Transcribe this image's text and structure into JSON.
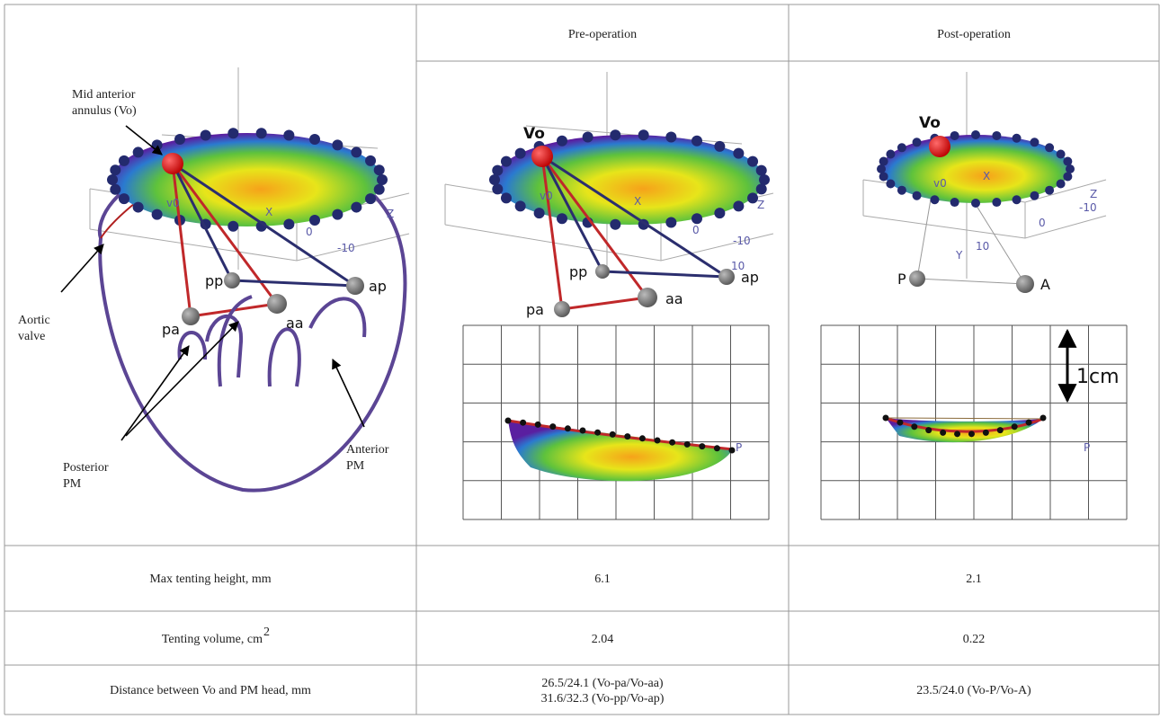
{
  "table": {
    "header": {
      "pre": "Pre-operation",
      "post": "Post-operation"
    },
    "rows": [
      {
        "label": "Max tenting height, mm",
        "pre": [
          "6.1"
        ],
        "post": "2.1"
      },
      {
        "label": "Tenting volume, cm",
        "label_superscript": "2",
        "pre": [
          "2.04"
        ],
        "post": "0.22"
      },
      {
        "label": "Distance between Vo and PM head, mm",
        "pre": [
          "26.5/24.1 (Vo-pa/Vo-aa)",
          "31.6/32.3 (Vo-pp/Vo-ap)"
        ],
        "post": "23.5/24.0 (Vo-P/Vo-A)"
      }
    ]
  },
  "diagram": {
    "mid_anterior": [
      "Mid anterior",
      "annulus (Vo)"
    ],
    "aortic_valve": [
      "Aortic",
      "valve"
    ],
    "posterior_pm": [
      "Posterior",
      "PM"
    ],
    "anterior_pm": [
      "Anterior",
      "PM"
    ],
    "points": {
      "pp": "pp",
      "ap": "ap",
      "pa": "pa",
      "aa": "aa"
    },
    "axes": {
      "v0": "v0",
      "x": "X",
      "z": "Z",
      "zero": "0",
      "minus10": "-10"
    }
  },
  "pre_image": {
    "vo": "Vo",
    "points": {
      "pp": "pp",
      "ap": "ap",
      "pa": "pa",
      "aa": "aa"
    },
    "axes": {
      "v0": "v0",
      "x": "X",
      "z": "Z",
      "zero": "0",
      "minus10": "-10",
      "ten": "10"
    },
    "side_label": "P"
  },
  "post_image": {
    "vo": "Vo",
    "points": {
      "p": "P",
      "a": "A"
    },
    "axes": {
      "v0": "v0",
      "x": "X",
      "y": "Y",
      "z": "Z",
      "zero": "0",
      "minus10": "-10",
      "ten": "10"
    },
    "side_label": "P",
    "scale": "1cm"
  }
}
